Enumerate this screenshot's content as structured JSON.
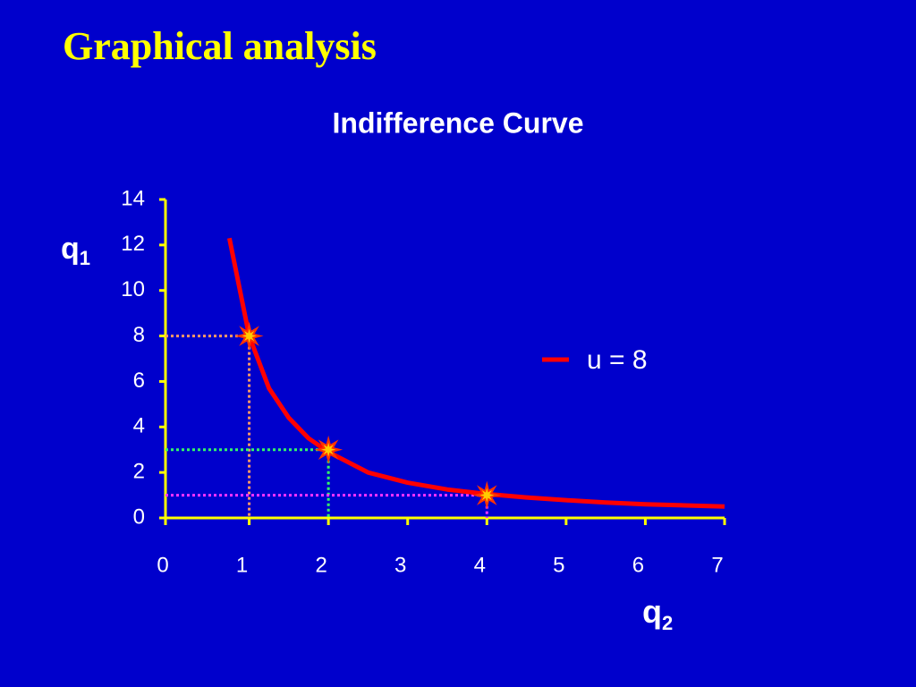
{
  "slide_title": "Graphical analysis",
  "chart_data": {
    "type": "line",
    "title": "Indifference Curve",
    "xlabel": {
      "base": "q",
      "sub": "2"
    },
    "ylabel": {
      "base": "q",
      "sub": "1"
    },
    "x": [
      0.75,
      1,
      1.25,
      1.5,
      1.75,
      2,
      2.5,
      3,
      3.5,
      4,
      4.5,
      5,
      5.5,
      6,
      6.5,
      7
    ],
    "series": [
      {
        "name": "u = 8",
        "color": "#ff0000",
        "values": [
          12.3,
          8,
          5.7,
          4.4,
          3.5,
          2.9,
          2.0,
          1.55,
          1.25,
          1.05,
          0.9,
          0.78,
          0.68,
          0.6,
          0.55,
          0.5
        ]
      }
    ],
    "points": {
      "x": [
        1,
        2,
        4
      ],
      "values": [
        8,
        3,
        1
      ],
      "colors": [
        "#ff9966",
        "#33ff66",
        "#ff33ff"
      ]
    },
    "xlim": [
      0,
      7
    ],
    "ylim": [
      0,
      14
    ],
    "xticks": [
      0,
      1,
      2,
      3,
      4,
      5,
      6,
      7
    ],
    "yticks": [
      0,
      2,
      4,
      6,
      8,
      10,
      12,
      14
    ],
    "axis_color": "#ffff00"
  }
}
